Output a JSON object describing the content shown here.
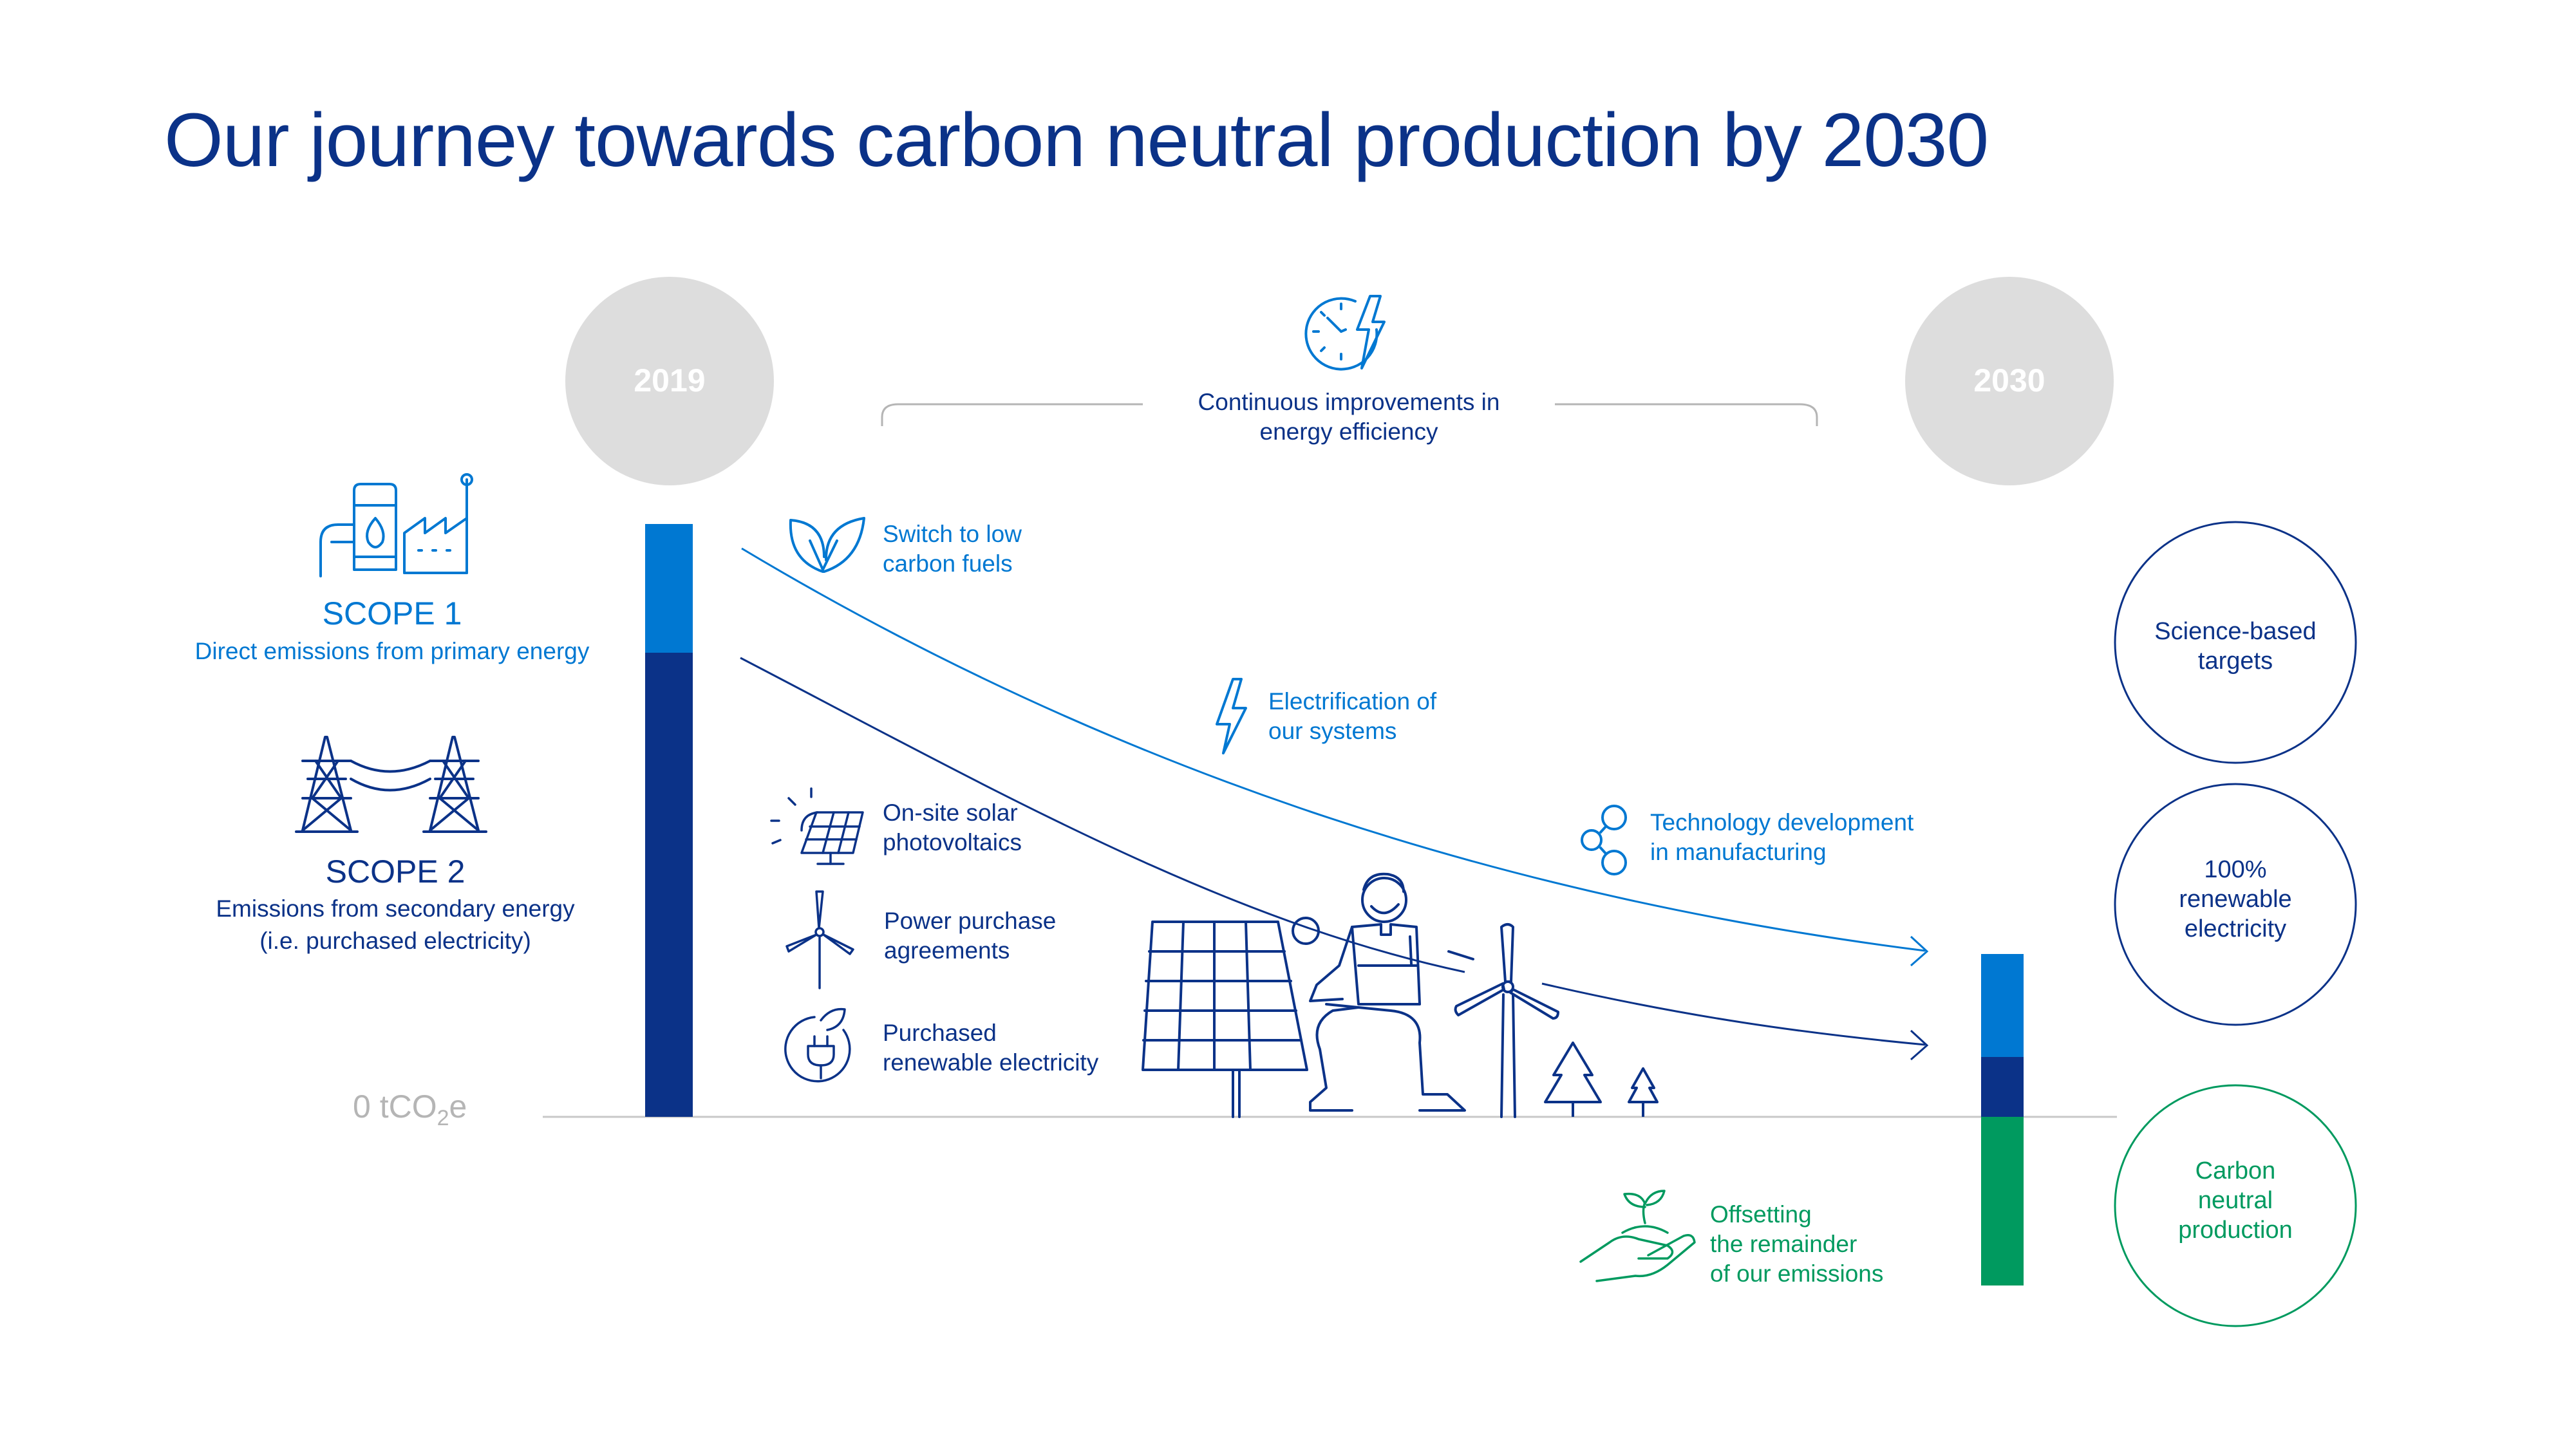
{
  "title": "Our journey towards carbon neutral production by 2030",
  "years": {
    "start": "2019",
    "end": "2030"
  },
  "scope1": {
    "title": "SCOPE 1",
    "description": "Direct emissions from primary energy"
  },
  "scope2": {
    "title": "SCOPE 2",
    "line1": "Emissions from secondary energy",
    "line2": "(i.e. purchased electricity)"
  },
  "baseline": {
    "prefix": "0 tCO",
    "subscript": "2",
    "suffix": "e"
  },
  "efficiency": {
    "line1": "Continuous improvements in",
    "line2": "energy efficiency"
  },
  "measures": {
    "low_carbon": {
      "line1": "Switch to low",
      "line2": "carbon fuels"
    },
    "electrification": {
      "line1": "Electrification of",
      "line2": "our systems"
    },
    "technology": {
      "line1": "Technology development",
      "line2": "in manufacturing"
    },
    "solar": {
      "line1": "On-site solar",
      "line2": "photovoltaics"
    },
    "ppa": {
      "line1": "Power purchase",
      "line2": "agreements"
    },
    "purchased": {
      "line1": "Purchased",
      "line2": "renewable electricity"
    },
    "offsetting": {
      "line1": "Offsetting",
      "line2": "the remainder",
      "line3": "of our emissions"
    }
  },
  "targets": {
    "sbt": {
      "line1": "Science-based",
      "line2": "targets"
    },
    "renewable": {
      "line1": "100%",
      "line2": "renewable",
      "line3": "electricity"
    },
    "neutral": {
      "line1": "Carbon",
      "line2": "neutral",
      "line3": "production"
    }
  },
  "colors": {
    "scope1": "#0078d2",
    "scope2": "#0b3288",
    "offset": "#009a5f",
    "year_circle": "#dddddd",
    "axis": "#c8c8c8"
  }
}
